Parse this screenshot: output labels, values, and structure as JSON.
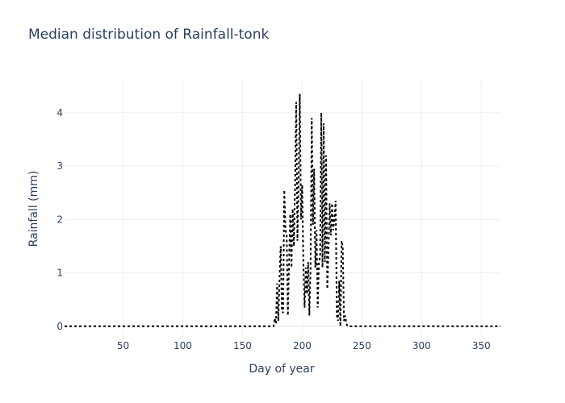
{
  "chart_data": {
    "type": "line",
    "title": "Median distribution of Rainfall-tonk",
    "xlabel": "Day of year",
    "ylabel": "Rainfall (mm)",
    "xlim": [
      1,
      366
    ],
    "ylim": [
      -0.2,
      4.6
    ],
    "xticks": [
      50,
      100,
      150,
      200,
      250,
      300,
      350
    ],
    "yticks": [
      0,
      1,
      2,
      3,
      4
    ],
    "grid": true,
    "line_style": "dotted",
    "line_color": "#000000",
    "series": [
      {
        "x": [
          1,
          176,
          177,
          178,
          179,
          180,
          181,
          182,
          183,
          184,
          185,
          186,
          187,
          188,
          189,
          190,
          191,
          192,
          193,
          194,
          195,
          196,
          197,
          198,
          199,
          200,
          201,
          202,
          203,
          204,
          205,
          206,
          207,
          208,
          209,
          210,
          211,
          212,
          213,
          214,
          215,
          216,
          217,
          218,
          219,
          220,
          221,
          222,
          223,
          224,
          225,
          226,
          227,
          228,
          229,
          230,
          231,
          232,
          233,
          234,
          235,
          236,
          237,
          238,
          239,
          240,
          241,
          242,
          243,
          244,
          245,
          246,
          247,
          248,
          249,
          366
        ],
        "y": [
          0,
          0,
          0.15,
          0.05,
          0.8,
          0.1,
          0.9,
          1.5,
          0.3,
          0.25,
          2.55,
          1.8,
          1.7,
          0.2,
          1.2,
          2.1,
          1.1,
          2.2,
          1.5,
          2.6,
          4.2,
          1.6,
          2.7,
          4.35,
          2.0,
          2.65,
          1.2,
          0.35,
          1.1,
          0.6,
          1.2,
          0.2,
          1.1,
          3.9,
          1.9,
          2.95,
          1.1,
          1.8,
          0.35,
          1.2,
          1.3,
          4.0,
          1.1,
          3.8,
          1.2,
          3.2,
          0.7,
          1.4,
          2.3,
          1.7,
          2.3,
          1.8,
          2.0,
          2.35,
          0.2,
          0.1,
          0.85,
          0,
          1.6,
          1.45,
          0.1,
          0.2,
          0.05,
          0,
          0,
          0,
          0,
          0,
          0,
          0,
          0,
          0,
          0,
          0,
          0,
          0
        ]
      }
    ]
  }
}
